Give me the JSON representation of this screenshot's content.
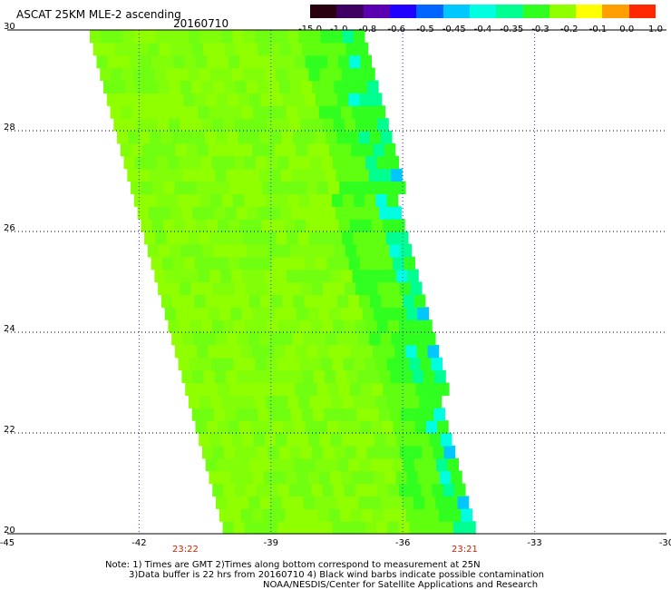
{
  "header": {
    "title": "ASCAT 25KM MLE-2 ascending",
    "date": "20160710"
  },
  "color_scale": {
    "labels": [
      "-15.0",
      "-1.0",
      "-0.8",
      "-0.6",
      "-0.5",
      "-0.45",
      "-0.4",
      "-0.35",
      "-0.3",
      "-0.2",
      "-0.1",
      "0.0",
      "1.0"
    ],
    "colors": [
      "#2a0010",
      "#3d0060",
      "#5a00b0",
      "#2000ff",
      "#0066ff",
      "#00c8ff",
      "#00ffe0",
      "#00ff90",
      "#30ff20",
      "#90ff00",
      "#ffff00",
      "#ffa000",
      "#ff2800"
    ]
  },
  "map": {
    "lat_labels": [
      "30",
      "28",
      "26",
      "24",
      "22",
      "20"
    ],
    "lon_labels": [
      "-45",
      "-42",
      "-39",
      "-36",
      "-33",
      "-30"
    ],
    "lat_range": [
      20,
      30
    ],
    "lon_range": [
      -45,
      -30
    ],
    "swath": {
      "top_left_lon": -43.2,
      "top_right_lon": -37.0,
      "bottom_left_lon": -40.1,
      "bottom_right_lon": -34.5
    },
    "times": [
      "23:22",
      "23:21"
    ]
  },
  "notes": [
    "Note: 1) Times are GMT 2)Times along bottom correspond to measurement at 25N",
    "3)Data buffer is 22 hrs from 20160710 4) Black wind barbs indicate possible contamination",
    "NOAA/NESDIS/Center for Satellite Applications and Research"
  ]
}
